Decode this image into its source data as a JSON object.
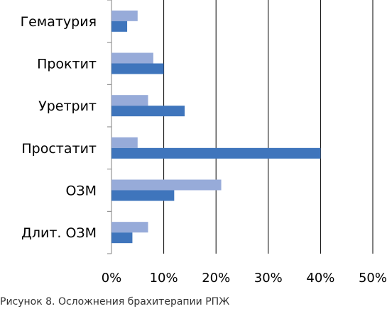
{
  "chart_data": {
    "type": "bar",
    "orientation": "horizontal",
    "categories": [
      "Гематурия",
      "Проктит",
      "Уретрит",
      "Простатит",
      "ОЗМ",
      "Длит. ОЗМ"
    ],
    "series": [
      {
        "values": [
          5,
          8,
          7,
          5,
          21,
          7
        ],
        "color": "#97ABD9"
      },
      {
        "values": [
          3,
          10,
          14,
          40,
          12,
          4
        ],
        "color": "#3F75BC"
      }
    ],
    "x_ticks": [
      0,
      10,
      20,
      30,
      40,
      50
    ],
    "tick_suffix": "%",
    "xlim": [
      0,
      50
    ],
    "grid": true,
    "legend": false
  },
  "caption": "Рисунок 8. Осложнения брахитерапии РПЖ"
}
